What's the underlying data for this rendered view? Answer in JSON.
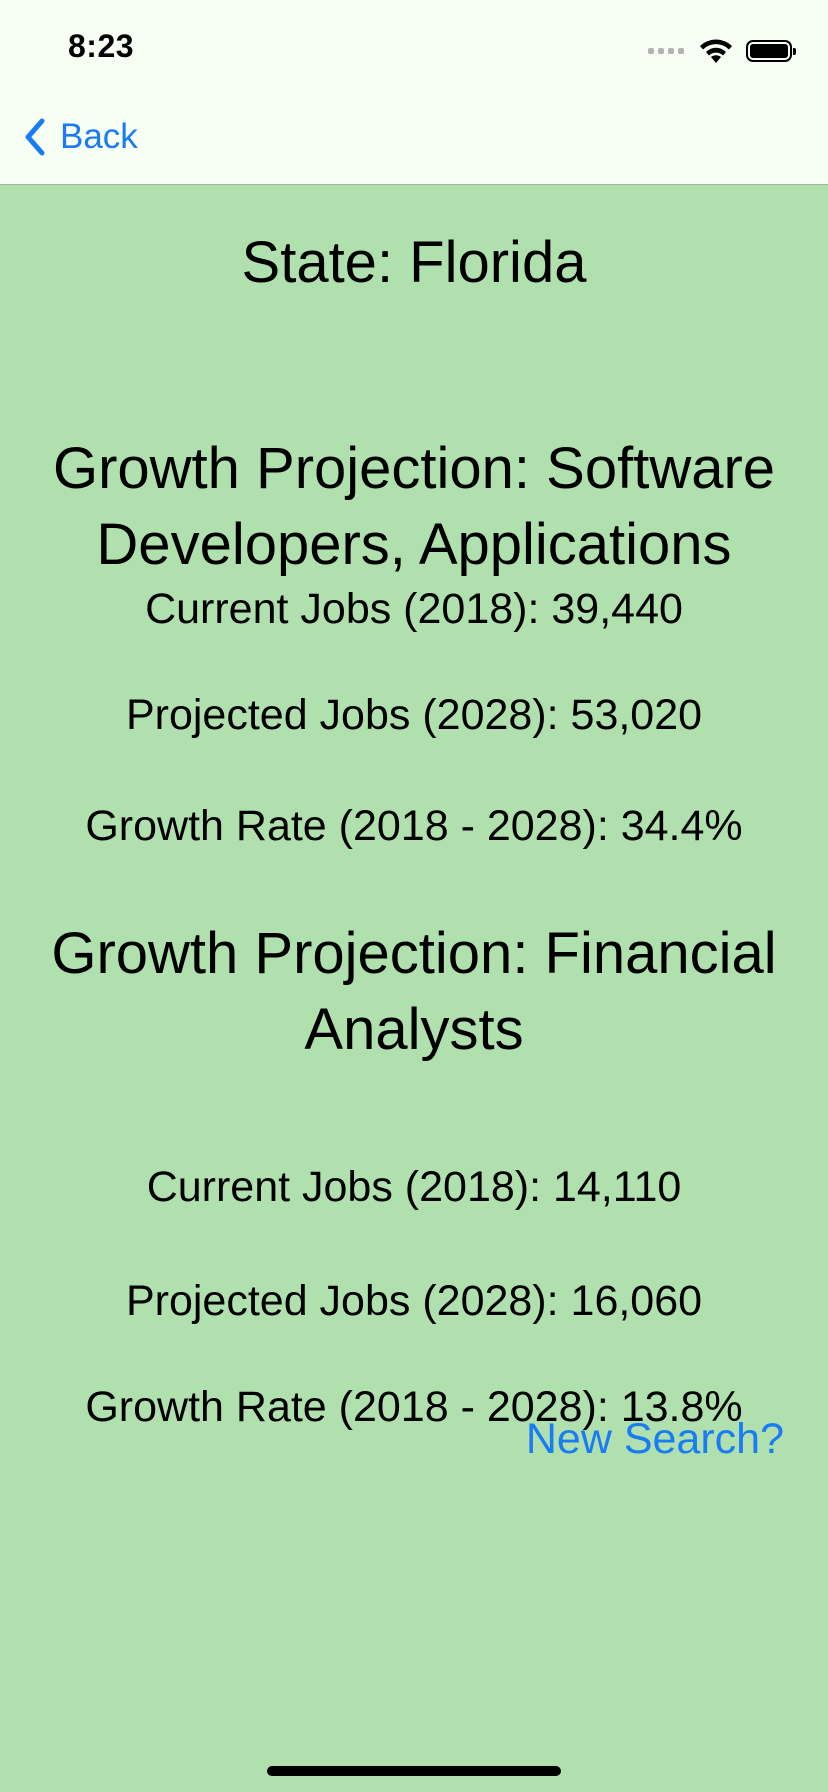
{
  "status_bar": {
    "time": "8:23",
    "icons": [
      "signal-icon",
      "wifi-icon",
      "battery-icon"
    ]
  },
  "nav": {
    "back_label": "Back",
    "accent_color": "#1a7cf5"
  },
  "state_title": "State: Florida",
  "projections": [
    {
      "title": "Growth Projection: Software Developers, Applications",
      "current_jobs": "Current Jobs (2018): 39,440",
      "projected_jobs": "Projected Jobs (2028): 53,020",
      "growth_rate": "Growth Rate (2018 - 2028): 34.4%"
    },
    {
      "title": "Growth Projection: Financial Analysts",
      "current_jobs": "Current Jobs (2018): 14,110",
      "projected_jobs": "Projected Jobs (2028): 16,060",
      "growth_rate": "Growth Rate (2018 - 2028): 13.8%"
    }
  ],
  "new_search_label": "New Search?",
  "background_color": "#b0e0ae"
}
